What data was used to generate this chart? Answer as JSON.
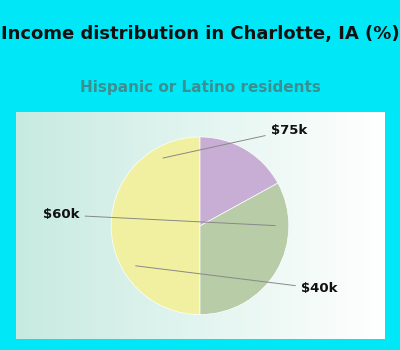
{
  "title": "Income distribution in Charlotte, IA (%)",
  "subtitle": "Hispanic or Latino residents",
  "slices": [
    {
      "label": "$60k",
      "value": 50,
      "color": "#f0f0a0"
    },
    {
      "label": "$40k",
      "value": 33,
      "color": "#b8cca8"
    },
    {
      "label": "$75k",
      "value": 17,
      "color": "#c8aed4"
    }
  ],
  "outer_bg_color": "#00e8f8",
  "chart_bg_left": "#c8e8d8",
  "chart_bg_right": "#e8f8f8",
  "title_color": "#111111",
  "subtitle_color": "#3a9090",
  "label_color": "#111111",
  "title_fontsize": 13,
  "subtitle_fontsize": 11,
  "label_fontsize": 9.5,
  "startangle": 90
}
